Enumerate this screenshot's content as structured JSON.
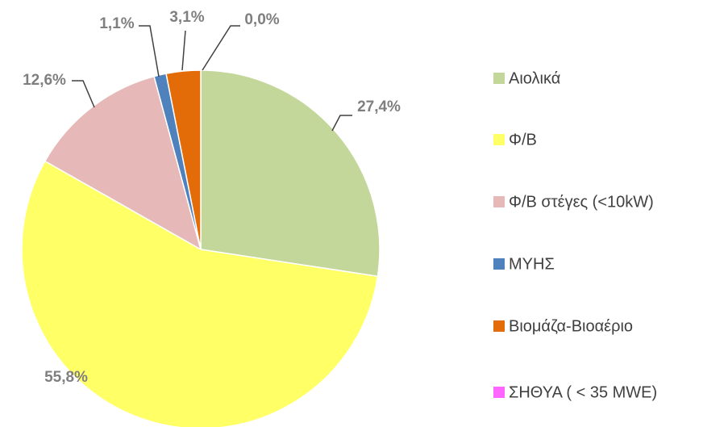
{
  "chart_data": {
    "type": "pie",
    "categories": [
      "Αιολικά",
      "Φ/Β",
      "Φ/Β στέγες (<10kW)",
      "ΜΥΗΣ",
      "Βιομάζα-Βιοαέριο",
      "ΣΗΘΥΑ ( < 35 MWE)"
    ],
    "values": [
      27.4,
      55.8,
      12.6,
      1.1,
      3.1,
      0.0
    ],
    "value_labels": [
      "27,4%",
      "55,8%",
      "12,6%",
      "1,1%",
      "3,1%",
      "0,0%"
    ],
    "colors": [
      "#c4d79b",
      "#ffff66",
      "#e6b8b7",
      "#4f81bd",
      "#e36c09",
      "#ff66ff"
    ],
    "legend": "right"
  }
}
